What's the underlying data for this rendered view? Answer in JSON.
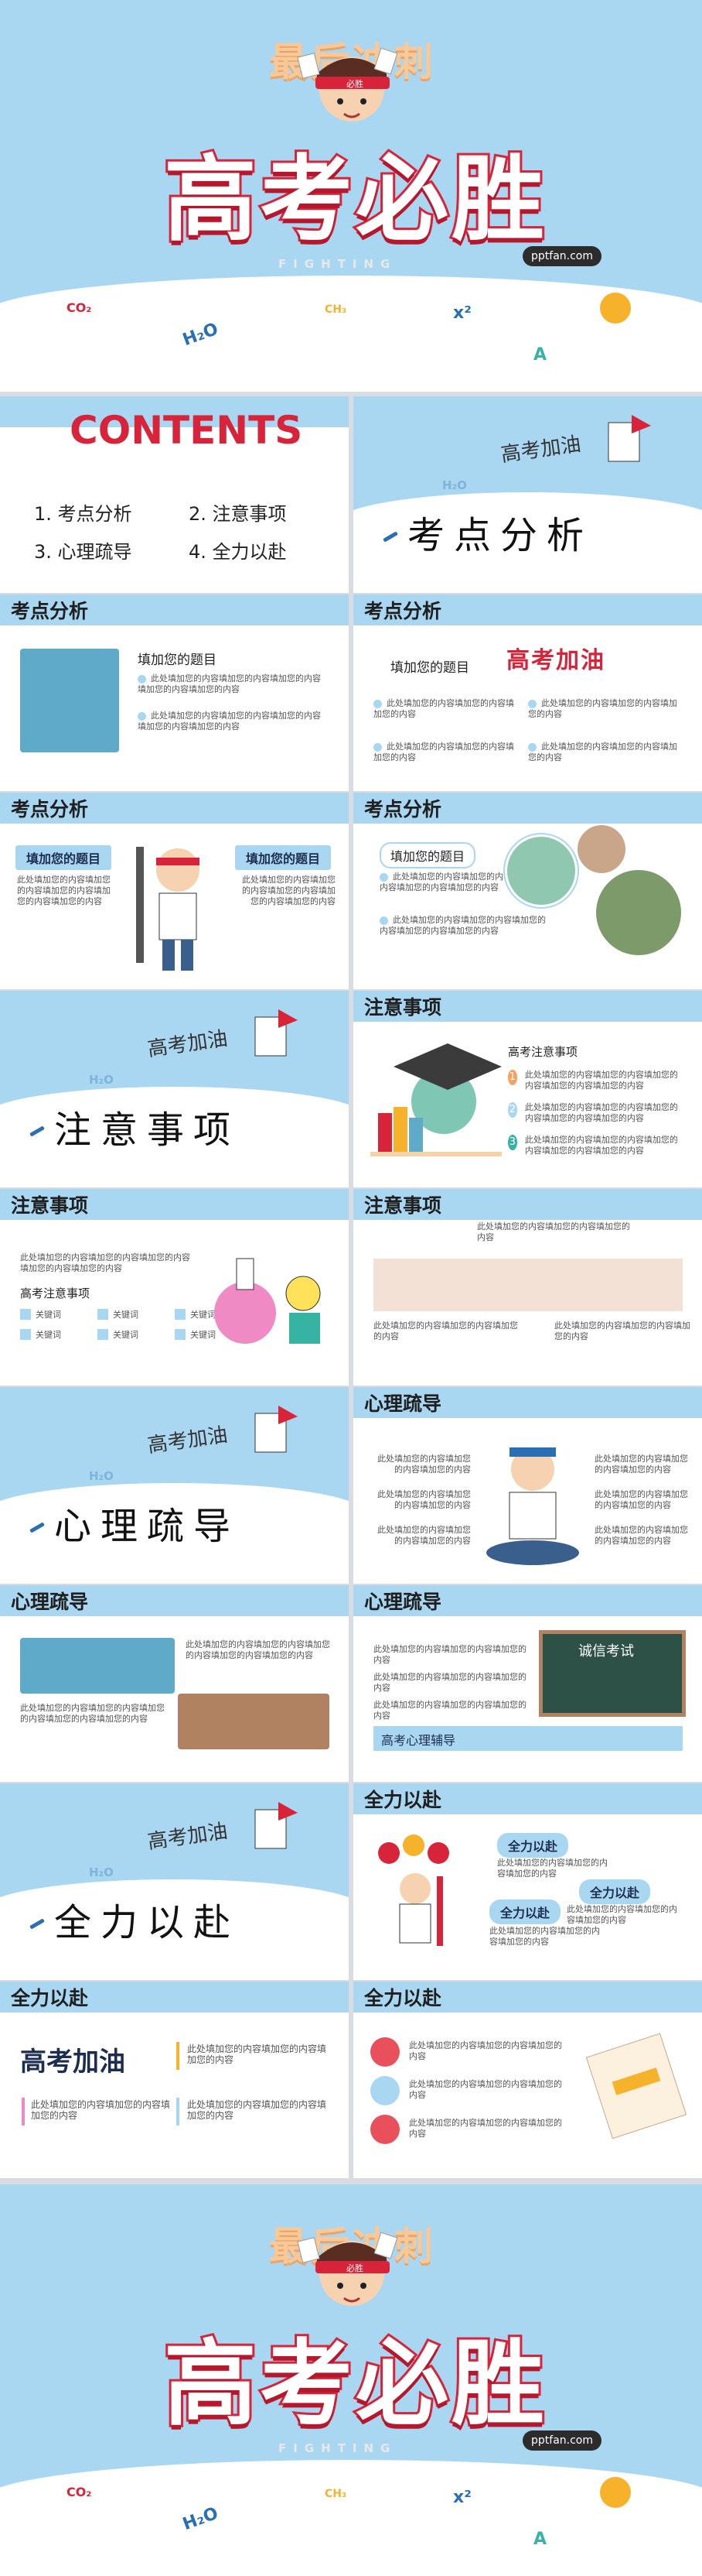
{
  "cover": {
    "tagline": "最后冲刺",
    "title": "高考必胜",
    "sub": "FIGHTING",
    "url": "pptfan.com",
    "headband": "必胜",
    "chem": [
      "CO₂",
      "H₂O",
      "CH₃",
      "x²",
      "A",
      "CH₃"
    ]
  },
  "contents": {
    "title": "CONTENTS",
    "items": [
      "1.  考点分析",
      "2.  注意事项",
      "3.  心理疏导",
      "4.  全力以赴"
    ]
  },
  "sections": {
    "s1": "考点分析",
    "s2": "注意事项",
    "s3": "心理疏导",
    "s4": "全力以赴",
    "h2o": "H₂O"
  },
  "headers": {
    "kd": "考点分析",
    "zy": "注意事项",
    "xl": "心理疏导",
    "ql": "全力以赴"
  },
  "texts": {
    "title_fill": "填加您的题目",
    "body_fill": "此处填加您的内容填加您的内容填加您的内容填加您的内容填加您的内容",
    "body_short": "此处填加您的内容填加您的内容填加您的内容",
    "zy_title": "高考注意事项",
    "zy_title2": "高考注意事项",
    "keyword": "关键词",
    "xl_banner": "高考心理辅导",
    "quanli": "全力以赴",
    "gkjy": "高考加油",
    "badge_nums": [
      "1",
      "2",
      "3"
    ],
    "board_text": "诚信考试"
  },
  "colors": {
    "sky": "#a9d7f2",
    "red": "#d7243a",
    "badge1": "#f4a261",
    "badge2": "#a9d7f2",
    "badge3": "#37b3a3"
  }
}
